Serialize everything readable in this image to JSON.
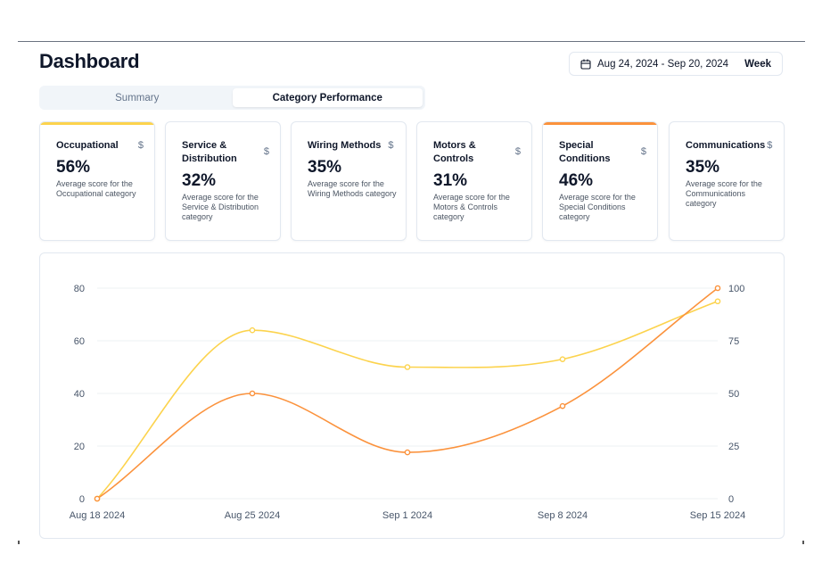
{
  "header": {
    "title": "Dashboard",
    "date_range": "Aug 24, 2024 - Sep 20, 2024",
    "granularity": "Week",
    "calendar_icon": "calendar-icon"
  },
  "tabs": [
    {
      "label": "Summary",
      "active": false
    },
    {
      "label": "Category Performance",
      "active": true
    }
  ],
  "cards": [
    {
      "name": "Occupational",
      "value": "56%",
      "description": "Average score for the Occupational category",
      "accent": "#fcd34d",
      "icon": "dollar-icon",
      "icon_glyph": "$"
    },
    {
      "name": "Service & Distribution",
      "value": "32%",
      "description": "Average score for the Service & Distribution category",
      "accent": "",
      "icon": "dollar-icon",
      "icon_glyph": "$"
    },
    {
      "name": "Wiring Methods",
      "value": "35%",
      "description": "Average score for the Wiring Methods category",
      "accent": "",
      "icon": "dollar-icon",
      "icon_glyph": "$"
    },
    {
      "name": "Motors & Controls",
      "value": "31%",
      "description": "Average score for the Motors & Controls category",
      "accent": "",
      "icon": "dollar-icon",
      "icon_glyph": "$"
    },
    {
      "name": "Special Conditions",
      "value": "46%",
      "description": "Average score for the Special Conditions category",
      "accent": "#fb923c",
      "icon": "dollar-icon",
      "icon_glyph": "$"
    },
    {
      "name": "Communications",
      "value": "35%",
      "description": "Average score for the Communications category",
      "accent": "",
      "icon": "dollar-icon",
      "icon_glyph": "$"
    }
  ],
  "chart_data": {
    "type": "line",
    "categories": [
      "Aug 18 2024",
      "Aug 25 2024",
      "Sep 1 2024",
      "Sep 8 2024",
      "Sep 15 2024"
    ],
    "y_left": {
      "ticks": [
        0,
        20,
        40,
        60,
        80
      ],
      "range": [
        0,
        80
      ]
    },
    "y_right": {
      "ticks": [
        0,
        25,
        50,
        75,
        100
      ],
      "range": [
        0,
        100
      ]
    },
    "grid": "horizontal",
    "series": [
      {
        "axis": "left",
        "color": "#fcd34d",
        "values": [
          0,
          64,
          50,
          53,
          75
        ]
      },
      {
        "axis": "right",
        "color": "#fb923c",
        "values": [
          0,
          50,
          22,
          44,
          100
        ]
      }
    ]
  }
}
